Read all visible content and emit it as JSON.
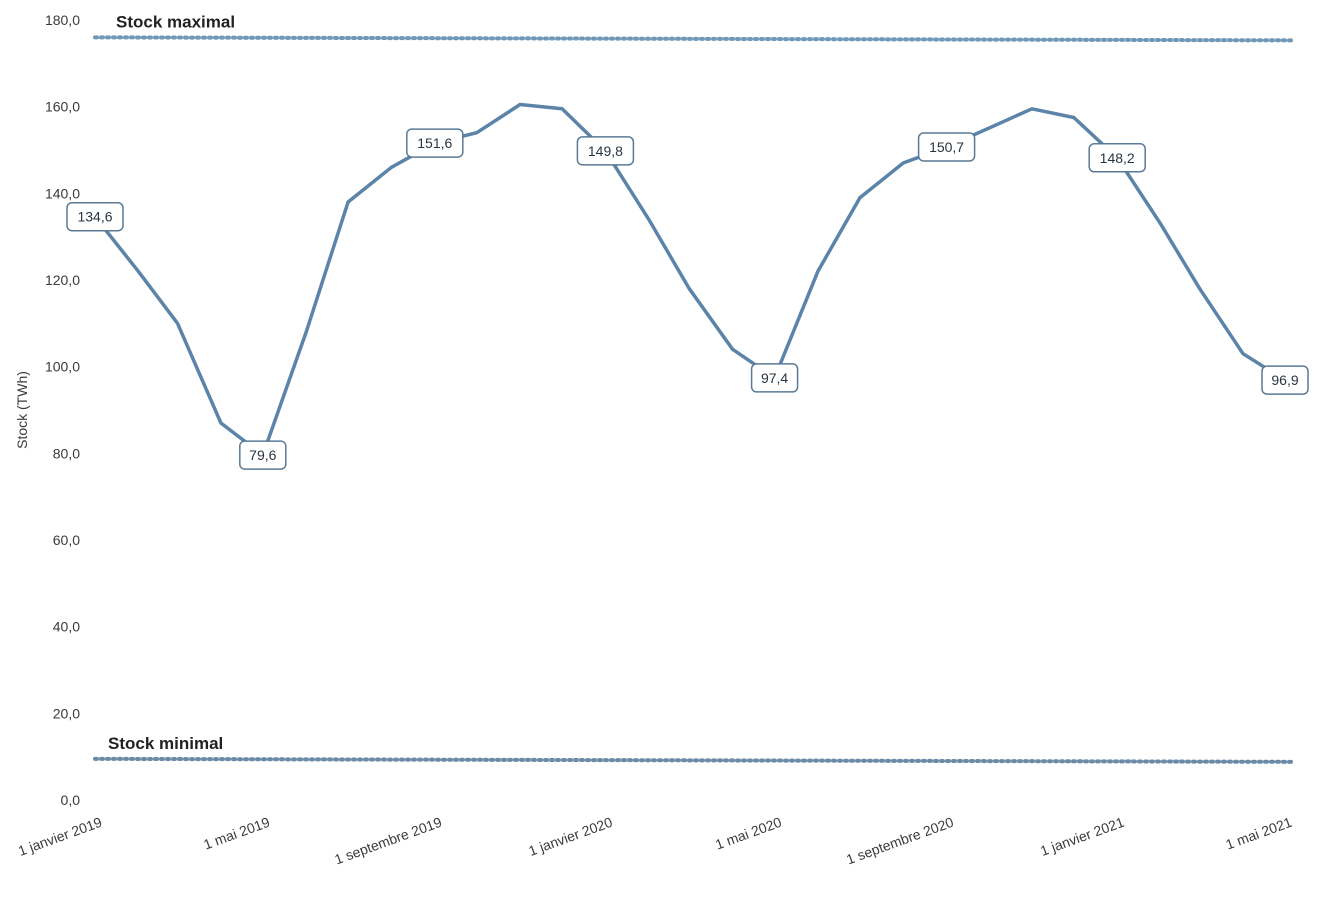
{
  "chart_data": {
    "type": "line",
    "title": "",
    "xlabel": "",
    "ylabel": "Stock (TWh)",
    "ylim": [
      0,
      180
    ],
    "y_ticks": [
      "0,0",
      "20,0",
      "40,0",
      "60,0",
      "80,0",
      "100,0",
      "120,0",
      "140,0",
      "160,0",
      "180,0"
    ],
    "y_tick_values": [
      0,
      20,
      40,
      60,
      80,
      100,
      120,
      140,
      160,
      180
    ],
    "x_ticks": [
      "1 janvier 2019",
      "1 mai 2019",
      "1 septembre 2019",
      "1 janvier 2020",
      "1 mai 2020",
      "1 septembre 2020",
      "1 janvier 2021",
      "1 mai 2021"
    ],
    "x_tick_dates": [
      "2019-01-01",
      "2019-05-01",
      "2019-09-01",
      "2020-01-01",
      "2020-05-01",
      "2020-09-01",
      "2021-01-01",
      "2021-05-01"
    ],
    "grid": false,
    "series": [
      {
        "name": "",
        "color": "#5b84a8",
        "points": [
          {
            "date": "2019-01-01",
            "value": 134.6
          },
          {
            "date": "2019-02-01",
            "value": 122
          },
          {
            "date": "2019-03-01",
            "value": 110
          },
          {
            "date": "2019-04-01",
            "value": 87
          },
          {
            "date": "2019-05-01",
            "value": 79.6
          },
          {
            "date": "2019-06-01",
            "value": 108
          },
          {
            "date": "2019-07-01",
            "value": 138
          },
          {
            "date": "2019-08-01",
            "value": 146
          },
          {
            "date": "2019-09-01",
            "value": 151.6
          },
          {
            "date": "2019-10-01",
            "value": 154
          },
          {
            "date": "2019-11-01",
            "value": 160.5
          },
          {
            "date": "2019-12-01",
            "value": 159.5
          },
          {
            "date": "2020-01-01",
            "value": 149.8
          },
          {
            "date": "2020-02-01",
            "value": 134
          },
          {
            "date": "2020-03-01",
            "value": 118
          },
          {
            "date": "2020-04-01",
            "value": 104
          },
          {
            "date": "2020-05-01",
            "value": 97.4
          },
          {
            "date": "2020-06-01",
            "value": 122
          },
          {
            "date": "2020-07-01",
            "value": 139
          },
          {
            "date": "2020-08-01",
            "value": 147
          },
          {
            "date": "2020-09-01",
            "value": 150.7
          },
          {
            "date": "2020-10-01",
            "value": 155
          },
          {
            "date": "2020-11-01",
            "value": 159.5
          },
          {
            "date": "2020-12-01",
            "value": 157.5
          },
          {
            "date": "2021-01-01",
            "value": 148.2
          },
          {
            "date": "2021-02-01",
            "value": 133
          },
          {
            "date": "2021-03-01",
            "value": 118
          },
          {
            "date": "2021-04-01",
            "value": 103
          },
          {
            "date": "2021-05-01",
            "value": 96.9
          }
        ]
      }
    ],
    "data_labels": [
      {
        "date": "2019-01-01",
        "value": 134.6,
        "text": "134,6"
      },
      {
        "date": "2019-05-01",
        "value": 79.6,
        "text": "79,6"
      },
      {
        "date": "2019-09-01",
        "value": 151.6,
        "text": "151,6"
      },
      {
        "date": "2020-01-01",
        "value": 149.8,
        "text": "149,8"
      },
      {
        "date": "2020-05-01",
        "value": 97.4,
        "text": "97,4"
      },
      {
        "date": "2020-09-01",
        "value": 150.7,
        "text": "150,7"
      },
      {
        "date": "2021-01-01",
        "value": 148.2,
        "text": "148,2"
      },
      {
        "date": "2021-05-01",
        "value": 96.9,
        "text": "96,9"
      }
    ],
    "reference_lines": [
      {
        "name": "Stock maximal",
        "value": 176,
        "color": "#6f98b8",
        "style": "dotted"
      },
      {
        "name": "Stock minimal",
        "value": 9.5,
        "color": "#6a8aa6",
        "style": "dotted"
      }
    ]
  }
}
